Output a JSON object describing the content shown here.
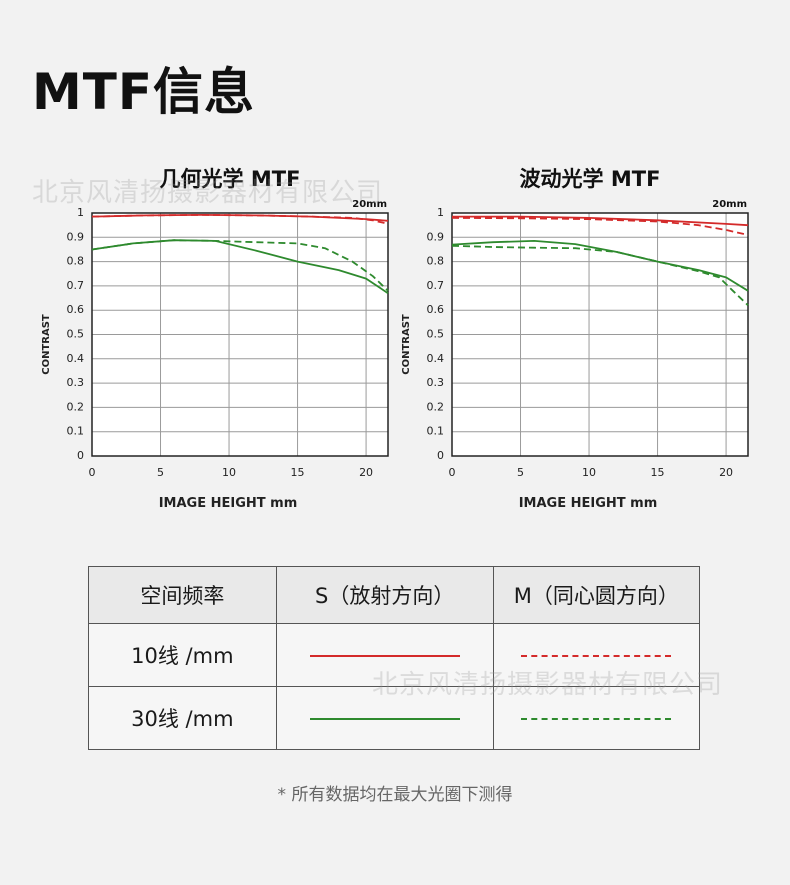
{
  "page": {
    "title": "MTF信息"
  },
  "watermark": "北京风清扬摄影器材有限公司",
  "chart_data": [
    {
      "type": "line",
      "title": "几何光学 MTF",
      "subtitle": "20mm",
      "xlabel": "IMAGE HEIGHT  mm",
      "ylabel": "CONTRAST",
      "xlim": [
        0,
        21.6
      ],
      "ylim": [
        0,
        1
      ],
      "xticks": [
        "0",
        "5",
        "10",
        "15",
        "20"
      ],
      "yticks": [
        "0",
        "0.1",
        "0.2",
        "0.3",
        "0.4",
        "0.5",
        "0.6",
        "0.7",
        "0.8",
        "0.9",
        "1"
      ],
      "grid": true,
      "series": [
        {
          "key": "s10",
          "color": "#d42a2a",
          "dash": false,
          "x": [
            0,
            4,
            8,
            12,
            16,
            20,
            21.6
          ],
          "y": [
            0.985,
            0.99,
            0.992,
            0.99,
            0.985,
            0.975,
            0.968
          ]
        },
        {
          "key": "m10",
          "color": "#d42a2a",
          "dash": true,
          "x": [
            0,
            4,
            8,
            12,
            16,
            19,
            20.5,
            21.6
          ],
          "y": [
            0.985,
            0.99,
            0.992,
            0.99,
            0.985,
            0.98,
            0.97,
            0.955
          ]
        },
        {
          "key": "s30",
          "color": "#2e8a2e",
          "dash": false,
          "x": [
            0,
            3,
            6,
            9,
            12,
            15,
            18,
            20,
            21.6
          ],
          "y": [
            0.85,
            0.875,
            0.888,
            0.885,
            0.845,
            0.8,
            0.765,
            0.73,
            0.67
          ]
        },
        {
          "key": "m30",
          "color": "#2e8a2e",
          "dash": true,
          "x": [
            0,
            3,
            6,
            9,
            12,
            15,
            17,
            19,
            20.5,
            21.6
          ],
          "y": [
            0.85,
            0.875,
            0.888,
            0.885,
            0.88,
            0.875,
            0.855,
            0.8,
            0.74,
            0.68
          ]
        }
      ]
    },
    {
      "type": "line",
      "title": "波动光学 MTF",
      "subtitle": "20mm",
      "xlabel": "IMAGE HEIGHT  mm",
      "ylabel": "CONTRAST",
      "xlim": [
        0,
        21.6
      ],
      "ylim": [
        0,
        1
      ],
      "xticks": [
        "0",
        "5",
        "10",
        "15",
        "20"
      ],
      "yticks": [
        "0",
        "0.1",
        "0.2",
        "0.3",
        "0.4",
        "0.5",
        "0.6",
        "0.7",
        "0.8",
        "0.9",
        "1"
      ],
      "grid": true,
      "series": [
        {
          "key": "s10",
          "color": "#d42a2a",
          "dash": false,
          "x": [
            0,
            5,
            10,
            15,
            20,
            21.6
          ],
          "y": [
            0.985,
            0.985,
            0.98,
            0.97,
            0.955,
            0.95
          ]
        },
        {
          "key": "m10",
          "color": "#d42a2a",
          "dash": true,
          "x": [
            0,
            5,
            10,
            15,
            18,
            20,
            21.6
          ],
          "y": [
            0.98,
            0.978,
            0.975,
            0.965,
            0.95,
            0.93,
            0.91
          ]
        },
        {
          "key": "s30",
          "color": "#2e8a2e",
          "dash": false,
          "x": [
            0,
            3,
            6,
            9,
            12,
            15,
            18,
            20,
            21.6
          ],
          "y": [
            0.87,
            0.88,
            0.885,
            0.872,
            0.84,
            0.8,
            0.765,
            0.735,
            0.68
          ]
        },
        {
          "key": "m30",
          "color": "#2e8a2e",
          "dash": true,
          "x": [
            0,
            3,
            6,
            9,
            12,
            15,
            18,
            19.5,
            20.5,
            21.6
          ],
          "y": [
            0.865,
            0.86,
            0.857,
            0.855,
            0.84,
            0.8,
            0.76,
            0.735,
            0.68,
            0.62
          ]
        }
      ]
    }
  ],
  "legend_table": {
    "headers": [
      "空间频率",
      "S（放射方向）",
      "M（同心圆方向）"
    ],
    "rows": [
      {
        "label": "10线 /mm",
        "s_color": "#d42a2a",
        "m_color": "#d42a2a"
      },
      {
        "label": "30线 /mm",
        "s_color": "#2e8a2e",
        "m_color": "#2e8a2e"
      }
    ]
  },
  "footnote": "* 所有数据均在最大光圈下测得"
}
